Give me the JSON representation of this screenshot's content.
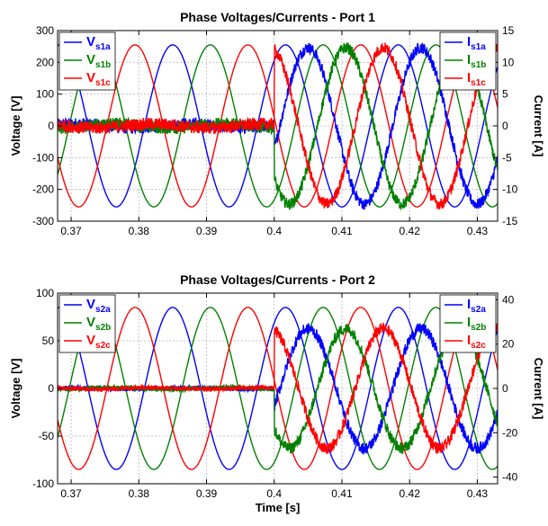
{
  "chart_data": [
    {
      "type": "line",
      "title": "Phase Voltages/Currents - Port 1",
      "ylabel": "Voltage [V]",
      "y2label": "Current [A]",
      "xlabel": "",
      "xlim": [
        0.368,
        0.433
      ],
      "ylim": [
        -300,
        300
      ],
      "y2lim": [
        -15,
        15
      ],
      "xticks": [
        "0.37",
        "0.38",
        "0.39",
        "0.4",
        "0.41",
        "0.42",
        "0.43"
      ],
      "xtick_values": [
        0.37,
        0.38,
        0.39,
        0.4,
        0.41,
        0.42,
        0.43
      ],
      "yticks": [
        "300",
        "200",
        "100",
        "0",
        "-100",
        "-200",
        "-300"
      ],
      "ytick_values": [
        300,
        200,
        100,
        0,
        -100,
        -200,
        -300
      ],
      "y2ticks": [
        "15",
        "10",
        "5",
        "0",
        "-5",
        "-10",
        "-15"
      ],
      "y2tick_values": [
        15,
        10,
        5,
        0,
        -5,
        -10,
        -15
      ],
      "grid": true,
      "voltage_amplitude": 255,
      "current_amplitude": 12.3,
      "current_step_time": 0.4,
      "pre_step_current_ripple": 1.0,
      "legend_left": [
        {
          "base": "V",
          "sub": "s1a",
          "color": "#0000ff"
        },
        {
          "base": "V",
          "sub": "s1b",
          "color": "#008000"
        },
        {
          "base": "V",
          "sub": "s1c",
          "color": "#ff0000"
        }
      ],
      "legend_right": [
        {
          "base": "I",
          "sub": "s1a",
          "color": "#0000ff"
        },
        {
          "base": "I",
          "sub": "s1b",
          "color": "#008000"
        },
        {
          "base": "I",
          "sub": "s1c",
          "color": "#ff0000"
        }
      ]
    },
    {
      "type": "line",
      "title": "Phase Voltages/Currents - Port 2",
      "ylabel": "Voltage [V]",
      "y2label": "Current [A]",
      "xlabel": "Time [s]",
      "xlim": [
        0.368,
        0.433
      ],
      "ylim": [
        -100,
        100
      ],
      "y2lim": [
        -43,
        43
      ],
      "xticks": [
        "0.37",
        "0.38",
        "0.39",
        "0.4",
        "0.41",
        "0.42",
        "0.43"
      ],
      "xtick_values": [
        0.37,
        0.38,
        0.39,
        0.4,
        0.41,
        0.42,
        0.43
      ],
      "yticks": [
        "100",
        "50",
        "0",
        "-50",
        "-100"
      ],
      "ytick_values": [
        100,
        50,
        0,
        -50,
        -100
      ],
      "y2ticks": [
        "40",
        "20",
        "0",
        "-20",
        "-40"
      ],
      "y2tick_values": [
        40,
        20,
        0,
        -20,
        -40
      ],
      "grid": true,
      "voltage_amplitude": 85,
      "current_amplitude": 27,
      "current_step_time": 0.4,
      "pre_step_current_ripple": 1.0,
      "legend_left": [
        {
          "base": "V",
          "sub": "s2a",
          "color": "#0000ff"
        },
        {
          "base": "V",
          "sub": "s2b",
          "color": "#008000"
        },
        {
          "base": "V",
          "sub": "s2c",
          "color": "#ff0000"
        }
      ],
      "legend_right": [
        {
          "base": "I",
          "sub": "s2a",
          "color": "#0000ff"
        },
        {
          "base": "I",
          "sub": "s2b",
          "color": "#008000"
        },
        {
          "base": "I",
          "sub": "s2c",
          "color": "#ff0000"
        }
      ]
    }
  ]
}
